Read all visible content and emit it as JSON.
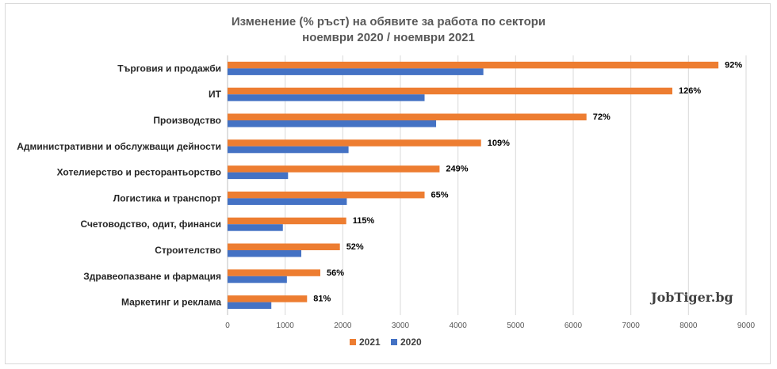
{
  "chart_data": {
    "type": "bar",
    "orientation": "horizontal",
    "title": "Изменение (% ръст) на обявите за работа по сектори",
    "subtitle": "ноември 2020 / ноември 2021",
    "categories": [
      "Търговия и продажби",
      "ИТ",
      "Производство",
      "Административни и обслужващи дейности",
      "Хотелиерство и ресторантьорство",
      "Логистика и транспорт",
      "Счетоводство, одит, финанси",
      "Строителство",
      "Здравеопазване и фармация",
      "Маркетинг и реклама"
    ],
    "series": [
      {
        "name": "2021",
        "color": "#ED7D31",
        "values": [
          8520,
          7720,
          6230,
          4400,
          3680,
          3420,
          2060,
          1950,
          1610,
          1380
        ]
      },
      {
        "name": "2020",
        "color": "#4472C4",
        "values": [
          4440,
          3420,
          3620,
          2100,
          1050,
          2070,
          960,
          1280,
          1030,
          760
        ]
      }
    ],
    "data_labels": [
      "92%",
      "126%",
      "72%",
      "109%",
      "249%",
      "65%",
      "115%",
      "52%",
      "56%",
      "81%"
    ],
    "xlim": [
      0,
      9000
    ],
    "xticks": [
      "0",
      "1000",
      "2000",
      "3000",
      "4000",
      "5000",
      "6000",
      "7000",
      "8000",
      "9000"
    ],
    "grid": true,
    "legend": "bottom",
    "watermark": "JobTiger.bg"
  }
}
